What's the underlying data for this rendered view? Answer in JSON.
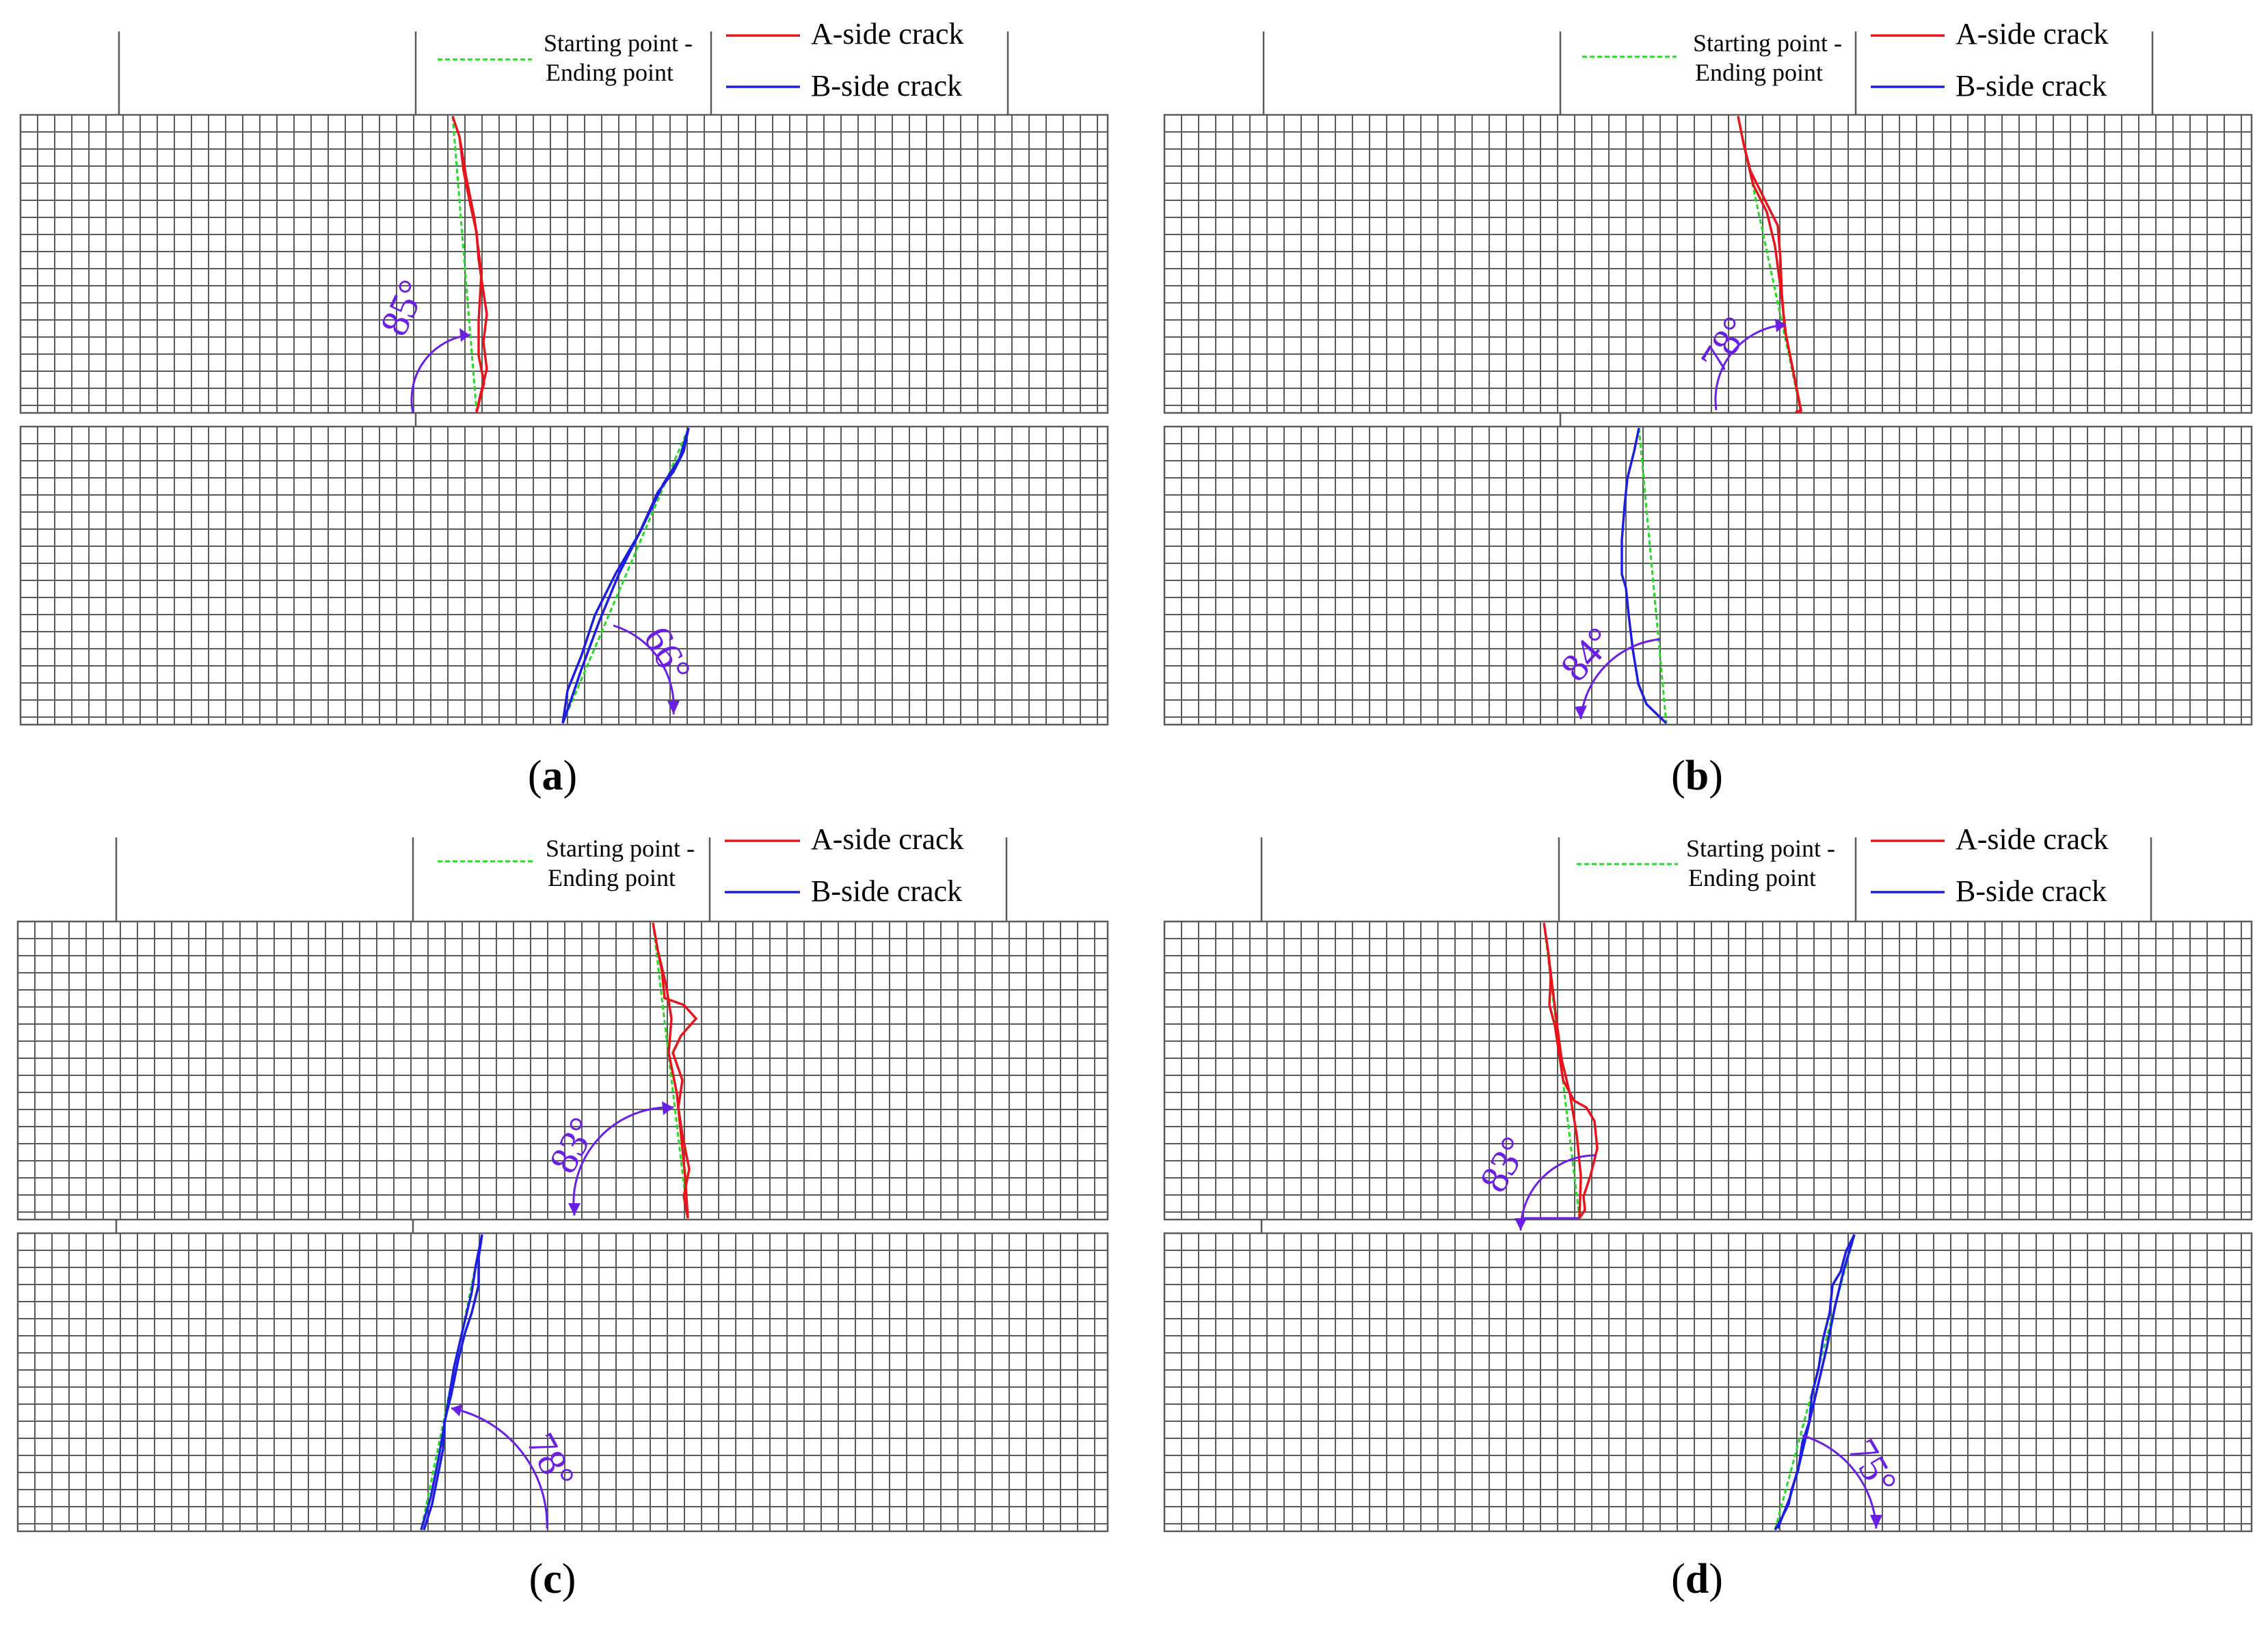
{
  "legend": {
    "green_label_line1": "Starting point -",
    "green_label_line2": "Ending point",
    "red_label": "A-side crack",
    "blue_label": "B-side crack"
  },
  "colors": {
    "grid": "#5a5a5a",
    "a_side": "#e8141c",
    "b_side": "#1e1ee0",
    "start_end": "#22dd22",
    "angle": "#6a1ee6"
  },
  "panels": [
    {
      "label_open": "(",
      "label_letter": "a",
      "label_close": ")",
      "top_angle": "85°",
      "bottom_angle": "66°"
    },
    {
      "label_open": "(",
      "label_letter": "b",
      "label_close": ")",
      "top_angle": "78°",
      "bottom_angle": "84°"
    },
    {
      "label_open": "(",
      "label_letter": "c",
      "label_close": ")",
      "top_angle": "83°",
      "bottom_angle": "78°"
    },
    {
      "label_open": "(",
      "label_letter": "d",
      "label_close": ")",
      "top_angle": "83°",
      "bottom_angle": "75°"
    }
  ]
}
